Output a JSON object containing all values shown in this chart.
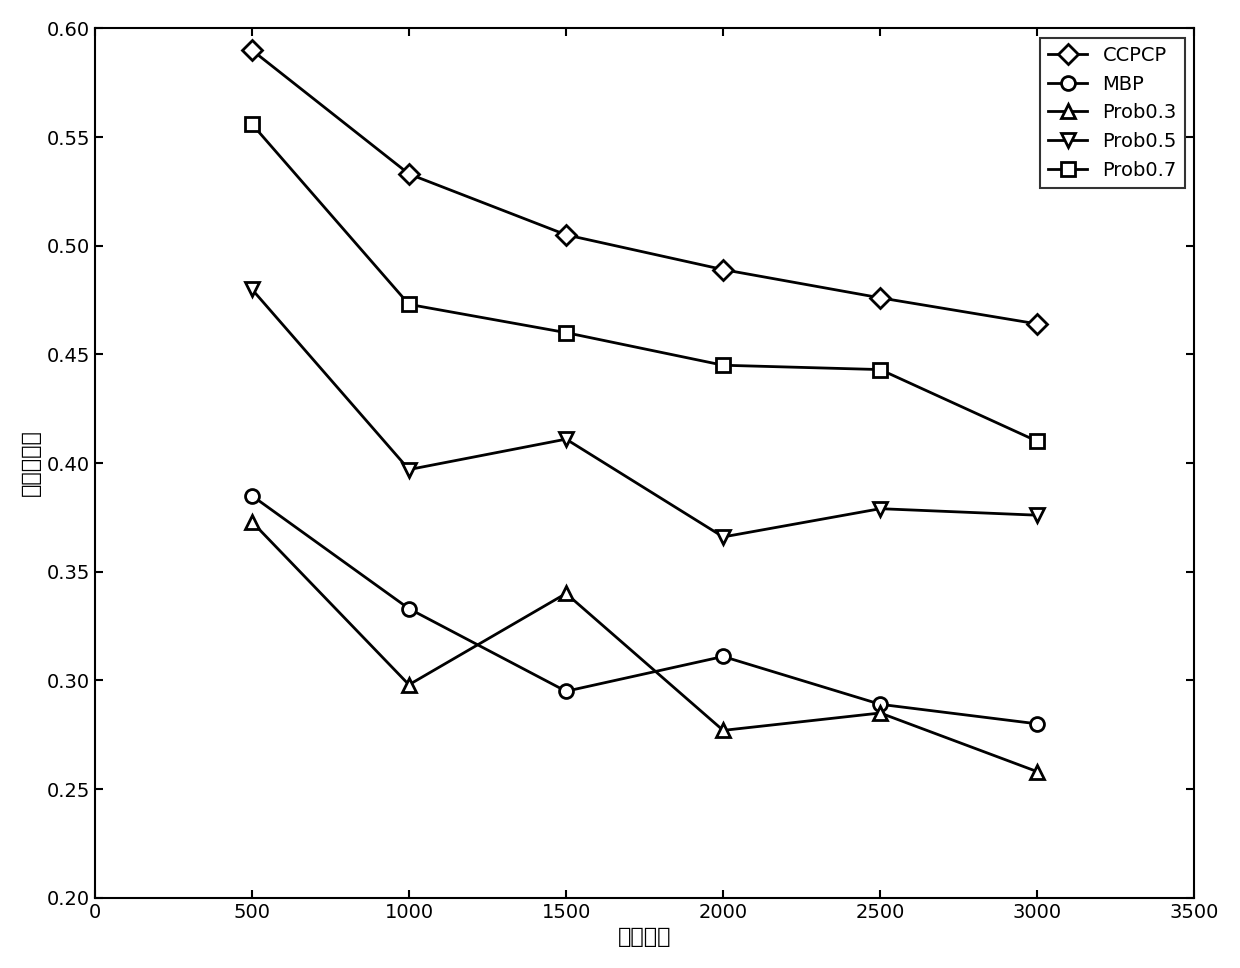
{
  "x": [
    500,
    1000,
    1500,
    2000,
    2500,
    3000
  ],
  "CCPCP": [
    0.59,
    0.533,
    0.505,
    0.489,
    0.476,
    0.464
  ],
  "MBP": [
    0.385,
    0.333,
    0.295,
    0.311,
    0.289,
    0.28
  ],
  "Prob0.3": [
    0.373,
    0.298,
    0.34,
    0.277,
    0.285,
    0.258
  ],
  "Prob0.5": [
    0.48,
    0.397,
    0.411,
    0.366,
    0.379,
    0.376
  ],
  "Prob0.7": [
    0.556,
    0.473,
    0.46,
    0.445,
    0.443,
    0.41
  ],
  "xlabel": "内容数量",
  "ylabel": "缓存命中率",
  "xlim": [
    0,
    3500
  ],
  "ylim": [
    0.2,
    0.6
  ],
  "xticks": [
    0,
    500,
    1000,
    1500,
    2000,
    2500,
    3000,
    3500
  ],
  "yticks": [
    0.2,
    0.25,
    0.3,
    0.35,
    0.4,
    0.45,
    0.5,
    0.55,
    0.6
  ],
  "line_color": "#000000",
  "linewidth": 2.0,
  "markersize": 10,
  "legend_loc": "upper right",
  "tick_fontsize": 14,
  "label_fontsize": 16,
  "legend_fontsize": 14
}
